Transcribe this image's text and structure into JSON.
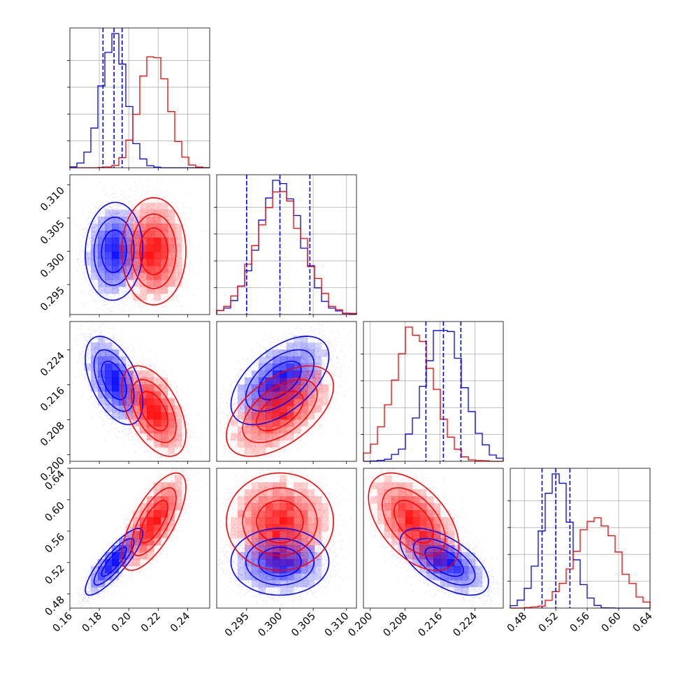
{
  "chart_data": {
    "type": "corner",
    "colors": {
      "first": "#0000ff",
      "second": "#ff0000",
      "quantile_line": "#0000ff"
    },
    "grid": true,
    "quantile_style": "dashed",
    "series": [
      {
        "color": "#0000ff",
        "means": [
          0.19,
          0.3,
          0.217,
          0.521
        ],
        "sigmas": [
          0.0085,
          0.0032,
          0.0044,
          0.0185
        ],
        "correlations": [
          [
            0,
            1,
            0.05
          ],
          [
            0,
            2,
            -0.5
          ],
          [
            0,
            3,
            0.85
          ],
          [
            1,
            2,
            0.55
          ],
          [
            1,
            3,
            0.0
          ],
          [
            2,
            3,
            -0.6
          ]
        ]
      },
      {
        "color": "#ff0000",
        "means": [
          0.217,
          0.3,
          0.21,
          0.572
        ],
        "sigmas": [
          0.0095,
          0.0035,
          0.0045,
          0.027
        ],
        "correlations": [
          [
            0,
            1,
            0.0
          ],
          [
            0,
            2,
            -0.5
          ],
          [
            0,
            3,
            0.7
          ],
          [
            1,
            2,
            0.55
          ],
          [
            1,
            3,
            0.0
          ],
          [
            2,
            3,
            -0.5
          ]
        ]
      }
    ],
    "quantile_lines": [
      [
        0.1825,
        0.19,
        0.1955
      ],
      [
        0.295,
        0.3,
        0.3045
      ],
      [
        0.2128,
        0.2168,
        0.2208
      ],
      [
        0.5025,
        0.52,
        0.538
      ]
    ],
    "axes": [
      {
        "range": [
          0.16,
          0.255
        ],
        "ticks": [
          "0.16",
          "0.18",
          "0.20",
          "0.22",
          "0.24"
        ]
      },
      {
        "range": [
          0.2905,
          0.3115
        ],
        "ticks": [
          "0.295",
          "0.300",
          "0.305",
          "0.310"
        ]
      },
      {
        "range": [
          0.1985,
          0.2305
        ],
        "ticks": [
          "0.200",
          "0.208",
          "0.216",
          "0.224"
        ]
      },
      {
        "range": [
          0.462,
          0.64
        ],
        "ticks": [
          "0.48",
          "0.52",
          "0.56",
          "0.60",
          "0.64"
        ]
      }
    ]
  }
}
